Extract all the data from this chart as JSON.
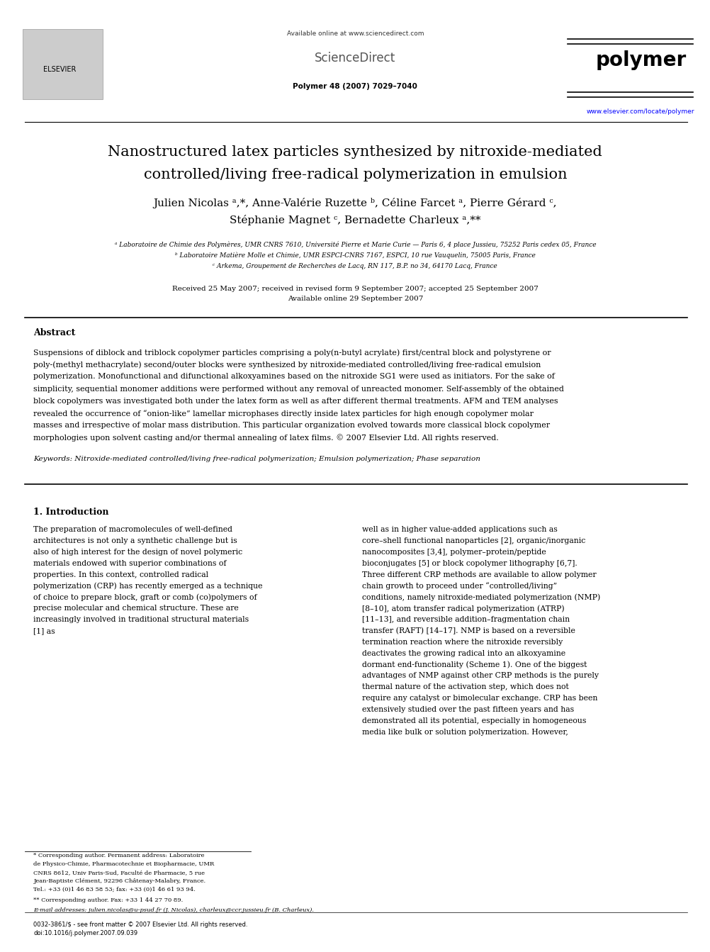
{
  "bg_color": "#ffffff",
  "title_line1": "Nanostructured latex particles synthesized by nitroxide-mediated",
  "title_line2": "controlled/living free-radical polymerization in emulsion",
  "authors_line1": "Julien Nicolas ᵃ,*, Anne-Valérie Ruzette ᵇ, Céline Farcet ᵃ, Pierre Gérard ᶜ,",
  "authors_line2": "Stéphanie Magnet ᶜ, Bernadette Charleux ᵃ,**",
  "affil_a": "ᵃ Laboratoire de Chimie des Polymères, UMR CNRS 7610, Université Pierre et Marie Curie — Paris 6, 4 place Jussieu, 75252 Paris cedex 05, France",
  "affil_b": "ᵇ Laboratoire Matière Molle et Chimie, UMR ESPCI-CNRS 7167, ESPCI, 10 rue Vauquelin, 75005 Paris, France",
  "affil_c": "ᶜ Arkema, Groupement de Recherches de Lacq, RN 117, B.P. no 34, 64170 Lacq, France",
  "received": "Received 25 May 2007; received in revised form 9 September 2007; accepted 25 September 2007",
  "available": "Available online 29 September 2007",
  "journal_ref": "Polymer 48 (2007) 7029–7040",
  "journal_name": "polymer",
  "sciencedirect_text": "Available online at www.sciencedirect.com",
  "sciencedirect_label": "ScienceDirect",
  "elsevier_url": "www.elsevier.com/locate/polymer",
  "abstract_title": "Abstract",
  "abstract_text": "Suspensions of diblock and triblock copolymer particles comprising a poly(n-butyl acrylate) first/central block and polystyrene or poly-(methyl methacrylate) second/outer blocks were synthesized by nitroxide-mediated controlled/living free-radical emulsion polymerization. Monofunctional and difunctional alkoxyamines based on the nitroxide SG1 were used as initiators. For the sake of simplicity, sequential monomer additions were performed without any removal of unreacted monomer. Self-assembly of the obtained block copolymers was investigated both under the latex form as well as after different thermal treatments. AFM and TEM analyses revealed the occurrence of “onion-like” lamellar microphases directly inside latex particles for high enough copolymer molar masses and irrespective of molar mass distribution. This particular organization evolved towards more classical block copolymer morphologies upon solvent casting and/or thermal annealing of latex films.\n© 2007 Elsevier Ltd. All rights reserved.",
  "keywords_label": "Keywords: ",
  "keywords_text": "Nitroxide-mediated controlled/living free-radical polymerization; Emulsion polymerization; Phase separation",
  "intro_heading": "1. Introduction",
  "intro_col1": "The preparation of macromolecules of well-defined architectures is not only a synthetic challenge but is also of high interest for the design of novel polymeric materials endowed with superior combinations of properties. In this context, controlled radical polymerization (CRP) has recently emerged as a technique of choice to prepare block, graft or comb (co)polymers of precise molecular and chemical structure. These are increasingly involved in traditional structural materials [1] as",
  "intro_col2": "well as in higher value-added applications such as core–shell functional nanoparticles [2], organic/inorganic nanocomposites [3,4], polymer–protein/peptide bioconjugates [5] or block copolymer lithography [6,7]. Three different CRP methods are available to allow polymer chain growth to proceed under “controlled/living” conditions, namely nitroxide-mediated polymerization (NMP) [8–10], atom transfer radical polymerization (ATRP) [11–13], and reversible addition–fragmentation chain transfer (RAFT) [14–17]. NMP is based on a reversible termination reaction where the nitroxide reversibly deactivates the growing radical into an alkoxyamine dormant end-functionality (Scheme 1). One of the biggest advantages of NMP against other CRP methods is the purely thermal nature of the activation step, which does not require any catalyst or bimolecular exchange.",
  "intro_col2b": "CRP has been extensively studied over the past fifteen years and has demonstrated all its potential, especially in homogeneous media like bulk or solution polymerization. However,",
  "footnote1": "* Corresponding author. Permanent address: Laboratoire de Physico-Chimie, Pharmacotechnie et Biopharmacie, UMR CNRS 8612, Univ Paris-Sud, Faculté de Pharmacie, 5 rue Jean-Baptiste Clément, 92296 Châtenay-Malabry, France. Tel.: +33 (0)1 46 83 58 53; fax: +33 (0)1 46 61 93 94.",
  "footnote2": "** Corresponding author. Fax: +33 1 44 27 70 89.",
  "footnote3": "E-mail addresses: julien.nicolas@u-psud.fr (J. Nicolas), charleux@ccr.jussieu.fr (B. Charleux).",
  "footer_left": "0032-3861/$ - see front matter © 2007 Elsevier Ltd. All rights reserved.",
  "footer_doi": "doi:10.1016/j.polymer.2007.09.039"
}
